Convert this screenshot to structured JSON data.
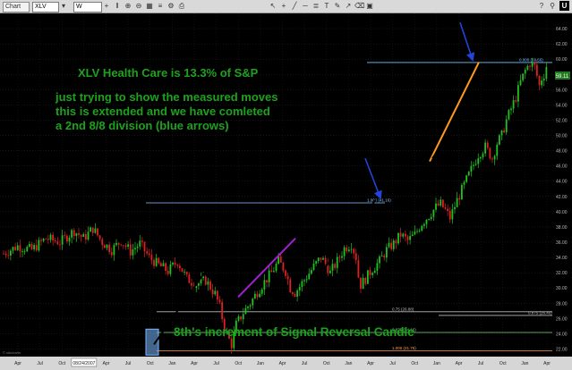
{
  "toolbar": {
    "window_title": "Chart",
    "symbol": "XLV",
    "period": "W",
    "brand": "U"
  },
  "annotations": {
    "title": "XLV Health Care is 13.3% of S&P",
    "line1": "just trying to show the measured moves",
    "line2": "this is extended and we have comleted",
    "line3": "a 2nd 8/8 division (blue arrows)",
    "bottom": "8th's increment of Signal Reversal Candle"
  },
  "colors": {
    "background": "#000000",
    "candle_up": "#1fc21f",
    "candle_down": "#e02020",
    "trend_line": "#000000",
    "orange_line": "#ff9a1a",
    "purple_line": "#a020d0",
    "blue_arrow": "#2244dd",
    "fib_top": "#6ec6ff",
    "fib_mid": "#8cc7ff",
    "fib_low": "#7fdd7f",
    "fib_bottom": "#ff9a4a",
    "annotation_text": "#1ea21e",
    "highlight_box": "#7ab8ff"
  },
  "chart_data": {
    "type": "candlestick",
    "symbol": "XLV",
    "y_axis_ticks": [
      64.0,
      62.0,
      60.0,
      58.0,
      56.0,
      54.0,
      52.0,
      50.0,
      48.0,
      46.0,
      44.0,
      42.0,
      40.0,
      38.0,
      36.0,
      34.0,
      32.0,
      30.0,
      28.0,
      26.0,
      24.0,
      22.0
    ],
    "x_axis_ticks": [
      "Apr",
      "Jul",
      "Oct",
      "08/24/2007",
      "Apr",
      "Jul",
      "Oct",
      "Jan",
      "Apr",
      "Jul",
      "Oct",
      "Jan",
      "Apr",
      "Jul",
      "Oct",
      "Jan",
      "Apr",
      "Jul",
      "Oct",
      "Jan",
      "Apr",
      "Jul",
      "Oct",
      "Jan",
      "Apr"
    ],
    "ylim": [
      21.0,
      66.0
    ],
    "last_price": "59.11",
    "fib_levels": [
      {
        "label": "0.000 (59.56)",
        "value": 59.56
      },
      {
        "label": "1.000 (41.16)",
        "value": 41.16
      },
      {
        "label": "0.75 (26.88)",
        "value": 26.88
      },
      {
        "label": "0.875 (26.40)",
        "value": 26.4
      },
      {
        "label": "0.875 (24.16)",
        "value": 24.16
      },
      {
        "label": "1.000 (21.75)",
        "value": 21.75
      }
    ],
    "price_path": [
      [
        0,
        34.5
      ],
      [
        6,
        35.5
      ],
      [
        12,
        35.0
      ],
      [
        18,
        36.5
      ],
      [
        24,
        36.0
      ],
      [
        30,
        37.5
      ],
      [
        34,
        36.5
      ],
      [
        38,
        37.8
      ],
      [
        42,
        36.0
      ],
      [
        46,
        35.0
      ],
      [
        50,
        36.2
      ],
      [
        54,
        34.8
      ],
      [
        58,
        35.8
      ],
      [
        62,
        34.0
      ],
      [
        66,
        33.0
      ],
      [
        70,
        32.2
      ],
      [
        74,
        33.5
      ],
      [
        78,
        31.2
      ],
      [
        82,
        30.5
      ],
      [
        86,
        31.0
      ],
      [
        90,
        29.2
      ],
      [
        92,
        27.5
      ],
      [
        94,
        24.8
      ],
      [
        96,
        23.2
      ],
      [
        97,
        22.6
      ],
      [
        99,
        25.2
      ],
      [
        102,
        26.8
      ],
      [
        105,
        28.0
      ],
      [
        108,
        29.5
      ],
      [
        111,
        30.8
      ],
      [
        114,
        32.0
      ],
      [
        117,
        33.5
      ],
      [
        120,
        32.2
      ],
      [
        122,
        30.0
      ],
      [
        124,
        29.4
      ],
      [
        126,
        30.2
      ],
      [
        129,
        31.5
      ],
      [
        132,
        32.8
      ],
      [
        135,
        34.0
      ],
      [
        137,
        33.2
      ],
      [
        139,
        32.0
      ],
      [
        142,
        33.5
      ],
      [
        145,
        35.2
      ],
      [
        148,
        35.8
      ],
      [
        150,
        34.0
      ],
      [
        151,
        31.5
      ],
      [
        152,
        30.4
      ],
      [
        154,
        31.2
      ],
      [
        157,
        32.5
      ],
      [
        160,
        33.5
      ],
      [
        163,
        35.0
      ],
      [
        166,
        35.8
      ],
      [
        169,
        37.0
      ],
      [
        172,
        36.2
      ],
      [
        175,
        37.0
      ],
      [
        178,
        38.5
      ],
      [
        181,
        39.5
      ],
      [
        184,
        40.6
      ],
      [
        186,
        41.0
      ],
      [
        188,
        40.2
      ],
      [
        190,
        39.2
      ],
      [
        193,
        41.5
      ],
      [
        196,
        43.5
      ],
      [
        199,
        45.5
      ],
      [
        202,
        47.5
      ],
      [
        205,
        48.5
      ],
      [
        208,
        47.0
      ],
      [
        210,
        49.0
      ],
      [
        212,
        50.0
      ],
      [
        214,
        52.0
      ],
      [
        216,
        53.5
      ],
      [
        218,
        55.0
      ],
      [
        220,
        57.0
      ],
      [
        222,
        58.5
      ],
      [
        224,
        59.5
      ],
      [
        226,
        59.0
      ],
      [
        227,
        57.8
      ],
      [
        228,
        56.5
      ],
      [
        229,
        57.5
      ],
      [
        230,
        58.0
      ],
      [
        231,
        59.1
      ]
    ]
  }
}
